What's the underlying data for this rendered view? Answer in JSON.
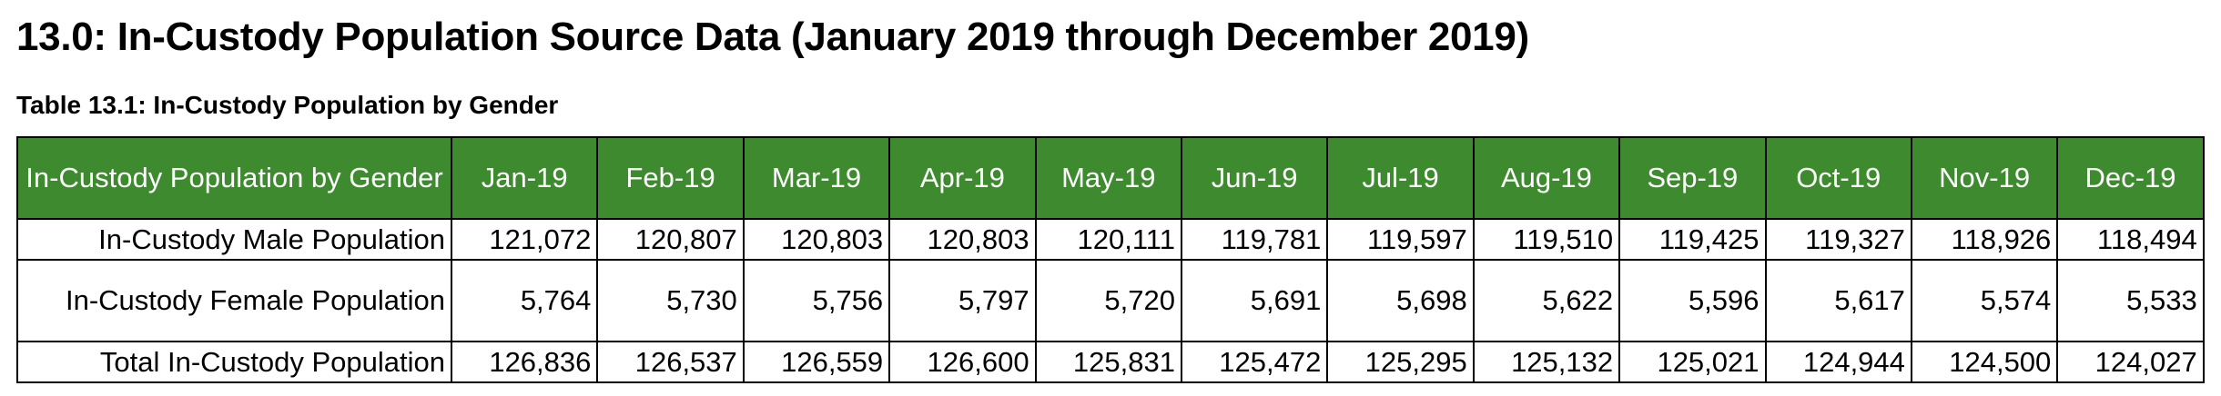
{
  "title": "13.0: In-Custody Population Source Data (January 2019 through December 2019)",
  "table_caption": "Table 13.1: In-Custody Population by Gender",
  "colors": {
    "header_bg": "#3d8b2e",
    "header_text": "#ffffff",
    "border": "#000000"
  },
  "table": {
    "corner_header": "In-Custody Population by Gender",
    "months": [
      "Jan-19",
      "Feb-19",
      "Mar-19",
      "Apr-19",
      "May-19",
      "Jun-19",
      "Jul-19",
      "Aug-19",
      "Sep-19",
      "Oct-19",
      "Nov-19",
      "Dec-19"
    ],
    "rows": [
      {
        "label": "In-Custody Male Population",
        "values": [
          "121,072",
          "120,807",
          "120,803",
          "120,803",
          "120,111",
          "119,781",
          "119,597",
          "119,510",
          "119,425",
          "119,327",
          "118,926",
          "118,494"
        ]
      },
      {
        "label": "In-Custody Female Population",
        "values": [
          "5,764",
          "5,730",
          "5,756",
          "5,797",
          "5,720",
          "5,691",
          "5,698",
          "5,622",
          "5,596",
          "5,617",
          "5,574",
          "5,533"
        ]
      },
      {
        "label": "Total In-Custody Population",
        "values": [
          "126,836",
          "126,537",
          "126,559",
          "126,600",
          "125,831",
          "125,472",
          "125,295",
          "125,132",
          "125,021",
          "124,944",
          "124,500",
          "124,027"
        ]
      }
    ]
  }
}
